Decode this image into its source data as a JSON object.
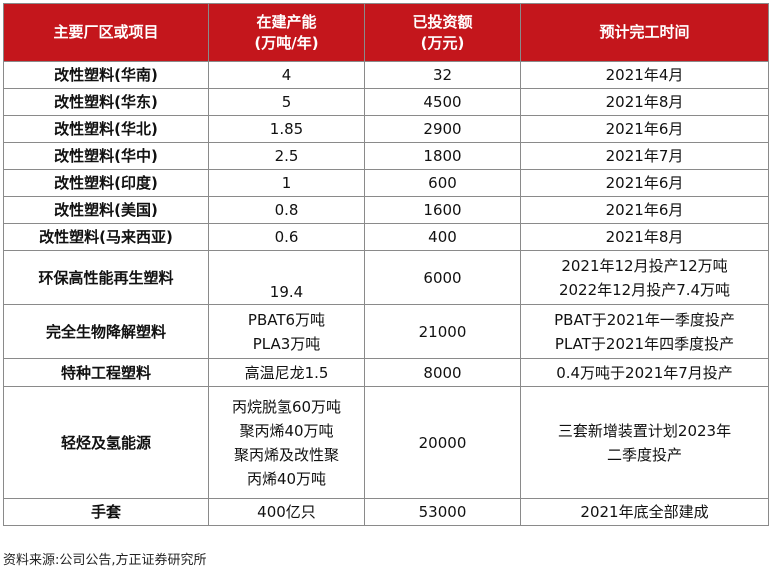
{
  "header": {
    "col1": "主要厂区或项目",
    "col2_line1": "在建产能",
    "col2_line2": "(万吨/年)",
    "col3_line1": "已投资额",
    "col3_line2": "(万元)",
    "col4": "预计完工时间"
  },
  "rows": [
    {
      "name": "改性塑料(华南)",
      "capacity": "4",
      "investment": "32",
      "completion": "2021年4月"
    },
    {
      "name": "改性塑料(华东)",
      "capacity": "5",
      "investment": "4500",
      "completion": "2021年8月"
    },
    {
      "name": "改性塑料(华北)",
      "capacity": "1.85",
      "investment": "2900",
      "completion": "2021年6月"
    },
    {
      "name": "改性塑料(华中)",
      "capacity": "2.5",
      "investment": "1800",
      "completion": "2021年7月"
    },
    {
      "name": "改性塑料(印度)",
      "capacity": "1",
      "investment": "600",
      "completion": "2021年6月"
    },
    {
      "name": "改性塑料(美国)",
      "capacity": "0.8",
      "investment": "1600",
      "completion": "2021年6月"
    },
    {
      "name": "改性塑料(马来西亚)",
      "capacity": "0.6",
      "investment": "400",
      "completion": "2021年8月"
    }
  ],
  "row_recycle": {
    "name": "环保高性能再生塑料",
    "capacity": "19.4",
    "investment": "6000",
    "completion_1": "2021年12月投产12万吨",
    "completion_2": "2022年12月投产7.4万吨"
  },
  "row_bio": {
    "name": "完全生物降解塑料",
    "capacity_1": "PBAT6万吨",
    "capacity_2": "PLA3万吨",
    "investment": "21000",
    "completion_1": "PBAT于2021年一季度投产",
    "completion_2": "PLAT于2021年四季度投产"
  },
  "row_special": {
    "name": "特种工程塑料",
    "capacity": "高温尼龙1.5",
    "investment": "8000",
    "completion": "0.4万吨于2021年7月投产"
  },
  "row_hydrogen": {
    "name": "轻烃及氢能源",
    "capacity_1": "丙烷脱氢60万吨",
    "capacity_2": "聚丙烯40万吨",
    "capacity_3": "聚丙烯及改性聚",
    "capacity_4": "丙烯40万吨",
    "investment": "20000",
    "completion_1": "三套新增装置计划2023年",
    "completion_2": "二季度投产"
  },
  "row_gloves": {
    "name": "手套",
    "capacity": "400亿只",
    "investment": "53000",
    "completion": "2021年底全部建成"
  },
  "source": "资料来源:公司公告,方正证券研究所"
}
